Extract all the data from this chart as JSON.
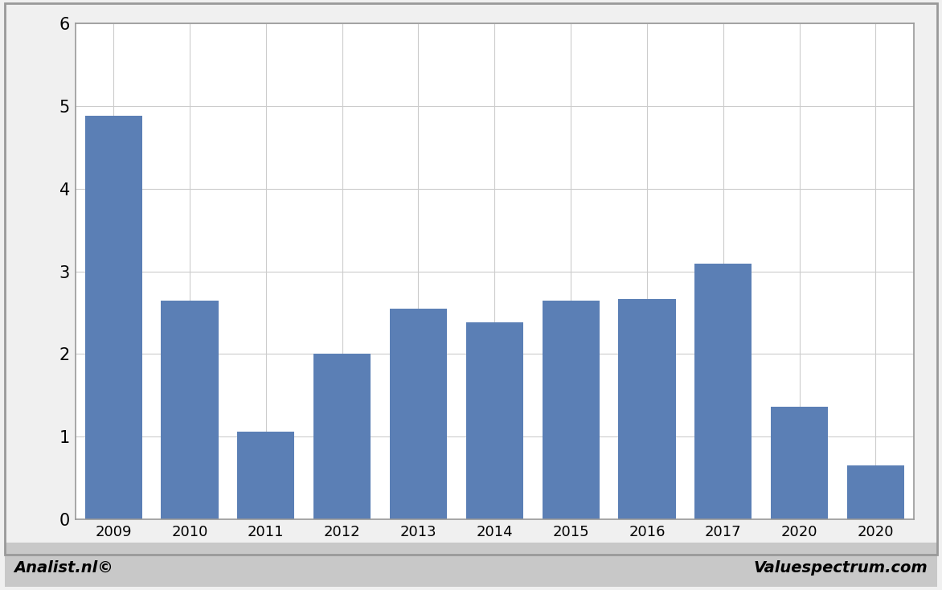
{
  "categories": [
    "2009",
    "2010",
    "2011",
    "2012",
    "2013",
    "2014",
    "2015",
    "2016",
    "2017",
    "2020",
    "2020"
  ],
  "values": [
    4.88,
    2.65,
    1.06,
    2.0,
    2.55,
    2.38,
    2.65,
    2.67,
    3.09,
    1.36,
    0.65
  ],
  "bar_color": "#5b7fb5",
  "ylim": [
    0,
    6
  ],
  "yticks": [
    0,
    1,
    2,
    3,
    4,
    5,
    6
  ],
  "background_color": "#f0f0f0",
  "plot_bg_color": "#ffffff",
  "grid_color": "#cccccc",
  "footer_left": "Analist.nl©",
  "footer_right": "Valuespectrum.com",
  "footer_bg": "#c8c8c8",
  "border_color": "#999999",
  "bar_width": 0.75
}
